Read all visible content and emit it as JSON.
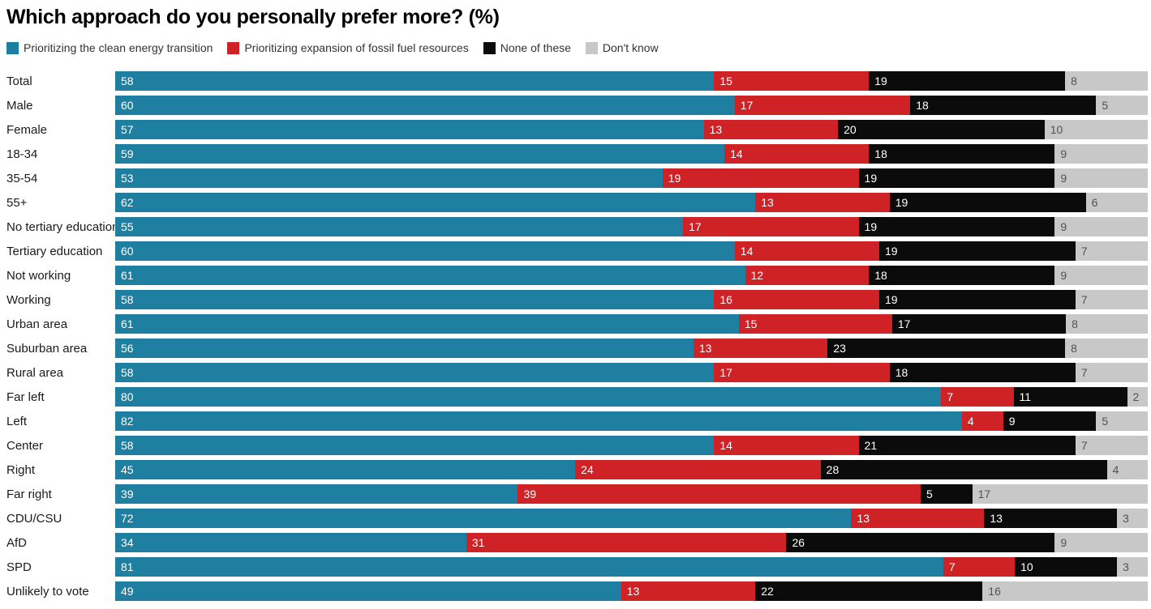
{
  "page": {
    "title": "Which approach do you personally prefer more? (%)"
  },
  "chart_data": {
    "type": "bar",
    "variant": "horizontal-stacked",
    "title": "Which approach do you personally prefer more? (%)",
    "xlim": [
      0,
      100
    ],
    "legend_position": "top",
    "value_labels": "inside-left",
    "grid": false,
    "categories": [
      "Total",
      "Male",
      "Female",
      "18-34",
      "35-54",
      "55+",
      "No tertiary education",
      "Tertiary education",
      "Not working",
      "Working",
      "Urban area",
      "Suburban area",
      "Rural area",
      "Far left",
      "Left",
      "Center",
      "Right",
      "Far right",
      "CDU/CSU",
      "AfD",
      "SPD",
      "Unlikely to vote"
    ],
    "series": [
      {
        "name": "Prioritizing the clean energy transition",
        "color": "#1f7fa0",
        "label_color": "#ffffff",
        "values": [
          58,
          60,
          57,
          59,
          53,
          62,
          55,
          60,
          61,
          58,
          61,
          56,
          58,
          80,
          82,
          58,
          45,
          39,
          72,
          34,
          81,
          49
        ]
      },
      {
        "name": "Prioritizing expansion of fossil fuel resources",
        "color": "#ce2227",
        "label_color": "#ffffff",
        "values": [
          15,
          17,
          13,
          14,
          19,
          13,
          17,
          14,
          12,
          16,
          15,
          13,
          17,
          7,
          4,
          14,
          24,
          39,
          13,
          31,
          7,
          13
        ]
      },
      {
        "name": "None of these",
        "color": "#0b0b0b",
        "label_color": "#ffffff",
        "values": [
          19,
          18,
          20,
          18,
          19,
          19,
          19,
          19,
          18,
          19,
          17,
          23,
          18,
          11,
          9,
          21,
          28,
          5,
          13,
          26,
          10,
          22
        ]
      },
      {
        "name": "Don't know",
        "color": "#c8c8c8",
        "label_color": "#525252",
        "values": [
          8,
          5,
          10,
          9,
          9,
          6,
          9,
          7,
          9,
          7,
          8,
          8,
          7,
          2,
          5,
          7,
          4,
          17,
          3,
          9,
          3,
          16
        ]
      }
    ]
  }
}
